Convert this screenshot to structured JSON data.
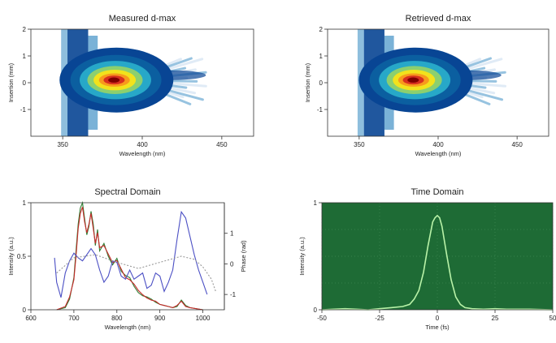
{
  "chart_data": [
    {
      "type": "heatmap",
      "title": "Measured d-max",
      "xlabel": "Wavelength (nm)",
      "ylabel": "Insertion (mm)",
      "xlim": [
        330,
        470
      ],
      "ylim": [
        -2,
        2
      ],
      "x_ticks": [
        "350",
        "400",
        "450"
      ],
      "y_ticks": [
        "-1",
        "0",
        "1",
        "2"
      ],
      "peak": {
        "x": 382,
        "y": 0.1
      },
      "colormap": [
        "#ffffff",
        "#c6dbef",
        "#4292c6",
        "#084594",
        "#0b5fa0",
        "#27a8c8",
        "#8ccf6f",
        "#f2e21c",
        "#f89a1c",
        "#d7301f",
        "#7f0000"
      ]
    },
    {
      "type": "heatmap",
      "title": "Retrieved d-max",
      "xlabel": "Wavelength (nm)",
      "ylabel": "Insertion (mm)",
      "xlim": [
        330,
        470
      ],
      "ylim": [
        -2,
        2
      ],
      "x_ticks": [
        "350",
        "400",
        "450"
      ],
      "y_ticks": [
        "-1",
        "0",
        "1",
        "2"
      ],
      "peak": {
        "x": 384,
        "y": 0.1
      },
      "colormap": [
        "#ffffff",
        "#c6dbef",
        "#4292c6",
        "#084594",
        "#0b5fa0",
        "#27a8c8",
        "#8ccf6f",
        "#f2e21c",
        "#f89a1c",
        "#d7301f",
        "#7f0000"
      ]
    },
    {
      "type": "line",
      "title": "Spectral Domain",
      "xlabel": "Wavelength (nm)",
      "ylabel": "Intensity (a.u.)",
      "y2label": "Phase (rad)",
      "xlim": [
        600,
        1050
      ],
      "ylim": [
        0,
        1
      ],
      "y2lim": [
        -1.5,
        2
      ],
      "x_ticks": [
        "600",
        "700",
        "800",
        "900",
        "1000"
      ],
      "y_ticks": [
        "0",
        "0.5",
        "1"
      ],
      "y2_ticks": [
        "-1",
        "0",
        "1"
      ],
      "series": [
        {
          "axis": "left",
          "color": "#2e7d32",
          "x": [
            660,
            680,
            690,
            700,
            705,
            710,
            715,
            720,
            725,
            730,
            735,
            740,
            745,
            750,
            755,
            760,
            770,
            780,
            790,
            800,
            810,
            820,
            830,
            840,
            850,
            860,
            870,
            880,
            890,
            900,
            910,
            920,
            930,
            940,
            950,
            960,
            970,
            1000
          ],
          "values": [
            0,
            0.02,
            0.1,
            0.3,
            0.55,
            0.8,
            0.95,
            1.0,
            0.85,
            0.7,
            0.78,
            0.92,
            0.8,
            0.6,
            0.75,
            0.55,
            0.62,
            0.5,
            0.42,
            0.48,
            0.36,
            0.32,
            0.3,
            0.22,
            0.16,
            0.13,
            0.12,
            0.1,
            0.07,
            0.05,
            0.04,
            0.03,
            0.02,
            0.03,
            0.09,
            0.04,
            0.02,
            0
          ]
        },
        {
          "axis": "left",
          "color": "#c62828",
          "x": [
            660,
            680,
            690,
            700,
            705,
            710,
            715,
            720,
            725,
            730,
            735,
            740,
            745,
            750,
            755,
            760,
            770,
            780,
            790,
            800,
            810,
            820,
            830,
            840,
            850,
            860,
            870,
            880,
            890,
            900,
            910,
            920,
            930,
            940,
            950,
            960,
            970,
            1000
          ],
          "values": [
            0,
            0.03,
            0.12,
            0.28,
            0.5,
            0.76,
            0.9,
            0.96,
            0.82,
            0.72,
            0.8,
            0.9,
            0.76,
            0.62,
            0.72,
            0.58,
            0.6,
            0.52,
            0.44,
            0.46,
            0.38,
            0.3,
            0.28,
            0.24,
            0.18,
            0.14,
            0.11,
            0.09,
            0.08,
            0.05,
            0.04,
            0.03,
            0.02,
            0.04,
            0.08,
            0.03,
            0.02,
            0
          ]
        },
        {
          "axis": "right",
          "color": "#4b4fc4",
          "x": [
            655,
            660,
            670,
            680,
            690,
            700,
            710,
            720,
            730,
            740,
            750,
            760,
            770,
            780,
            790,
            800,
            810,
            820,
            830,
            840,
            850,
            860,
            870,
            880,
            890,
            900,
            910,
            920,
            930,
            940,
            950,
            960,
            970,
            980,
            990,
            1000,
            1010
          ],
          "values": [
            0.2,
            -0.6,
            -1.1,
            -0.3,
            0.1,
            0.35,
            0.2,
            0.1,
            0.3,
            0.5,
            0.3,
            -0.2,
            -0.6,
            -0.4,
            0.1,
            0.05,
            -0.4,
            -0.5,
            -0.2,
            -0.5,
            -0.4,
            -0.3,
            -0.8,
            -0.7,
            -0.3,
            -0.4,
            -0.9,
            -0.6,
            -0.2,
            0.8,
            1.7,
            1.5,
            0.9,
            0.3,
            -0.2,
            -0.6,
            -1.0
          ]
        },
        {
          "axis": "right",
          "color": "#999999",
          "dashed": true,
          "x": [
            660,
            700,
            750,
            800,
            850,
            900,
            950,
            980,
            1000,
            1020,
            1030
          ],
          "values": [
            -0.3,
            0.2,
            0.3,
            0.05,
            -0.15,
            0.05,
            0.25,
            0.15,
            -0.1,
            -0.5,
            -0.9
          ]
        }
      ]
    },
    {
      "type": "line",
      "title": "Time Domain",
      "xlabel": "Time (fs)",
      "ylabel": "Intensity (a.u.)",
      "xlim": [
        -50,
        50
      ],
      "ylim": [
        0,
        1
      ],
      "x_ticks": [
        "-50",
        "-25",
        "0",
        "25",
        "50"
      ],
      "y_ticks": [
        "0",
        "1"
      ],
      "background": "#1e6b35",
      "series": [
        {
          "color": "#b9f2a8",
          "x": [
            -50,
            -45,
            -40,
            -35,
            -30,
            -25,
            -20,
            -15,
            -12,
            -10,
            -8,
            -6,
            -4,
            -2,
            -1,
            0,
            1,
            2,
            4,
            6,
            8,
            10,
            12,
            15,
            20,
            25,
            30,
            40,
            50
          ],
          "values": [
            0,
            0.005,
            0.01,
            0.005,
            0,
            0.01,
            0.02,
            0.03,
            0.05,
            0.1,
            0.18,
            0.35,
            0.6,
            0.82,
            0.86,
            0.88,
            0.86,
            0.78,
            0.52,
            0.28,
            0.12,
            0.05,
            0.02,
            0.01,
            0.005,
            0.01,
            0.005,
            0.005,
            0
          ]
        }
      ]
    }
  ]
}
